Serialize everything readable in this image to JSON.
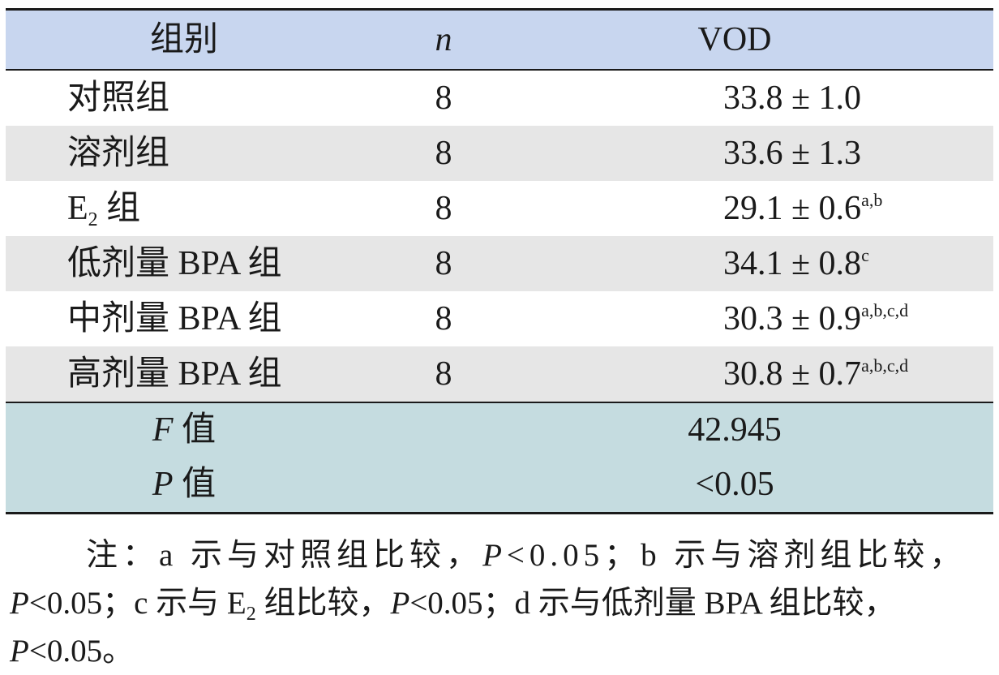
{
  "table": {
    "headers": {
      "group": "组别",
      "n": "n",
      "vod": "VOD"
    },
    "rows": [
      {
        "group": "对照组",
        "n": "8",
        "value": "33.8 ± 1.0",
        "sup": ""
      },
      {
        "group": "溶剂组",
        "n": "8",
        "value": "33.6 ± 1.3",
        "sup": ""
      },
      {
        "group_prefix": "E",
        "group_sub": "2",
        "group_suffix": " 组",
        "n": "8",
        "value": "29.1 ± 0.6",
        "sup": "a,b"
      },
      {
        "group": "低剂量 BPA 组",
        "n": "8",
        "value": "34.1 ± 0.8",
        "sup": "c"
      },
      {
        "group": "中剂量 BPA 组",
        "n": "8",
        "value": "30.3 ± 0.9",
        "sup": "a,b,c,d"
      },
      {
        "group": "高剂量 BPA 组",
        "n": "8",
        "value": "30.8 ± 0.7",
        "sup": "a,b,c,d"
      }
    ],
    "stats": [
      {
        "symbol": "F",
        "label": " 值",
        "value": "42.945"
      },
      {
        "symbol": "P",
        "label": " 值",
        "value": "<0.05"
      }
    ]
  },
  "note": {
    "l1_a": "注：a 示与对照组比较，",
    "l1_p": "P",
    "l1_b": "<0.05；b 示与溶剂组比较，",
    "l2_p1": "P",
    "l2_a": "<0.05；c 示与 E",
    "l2_sub": "2",
    "l2_b": " 组比较，",
    "l2_p2": "P",
    "l2_c": "<0.05；d 示与低剂量 BPA 组比较，",
    "l3_p": "P",
    "l3_a": "<0.05。"
  }
}
